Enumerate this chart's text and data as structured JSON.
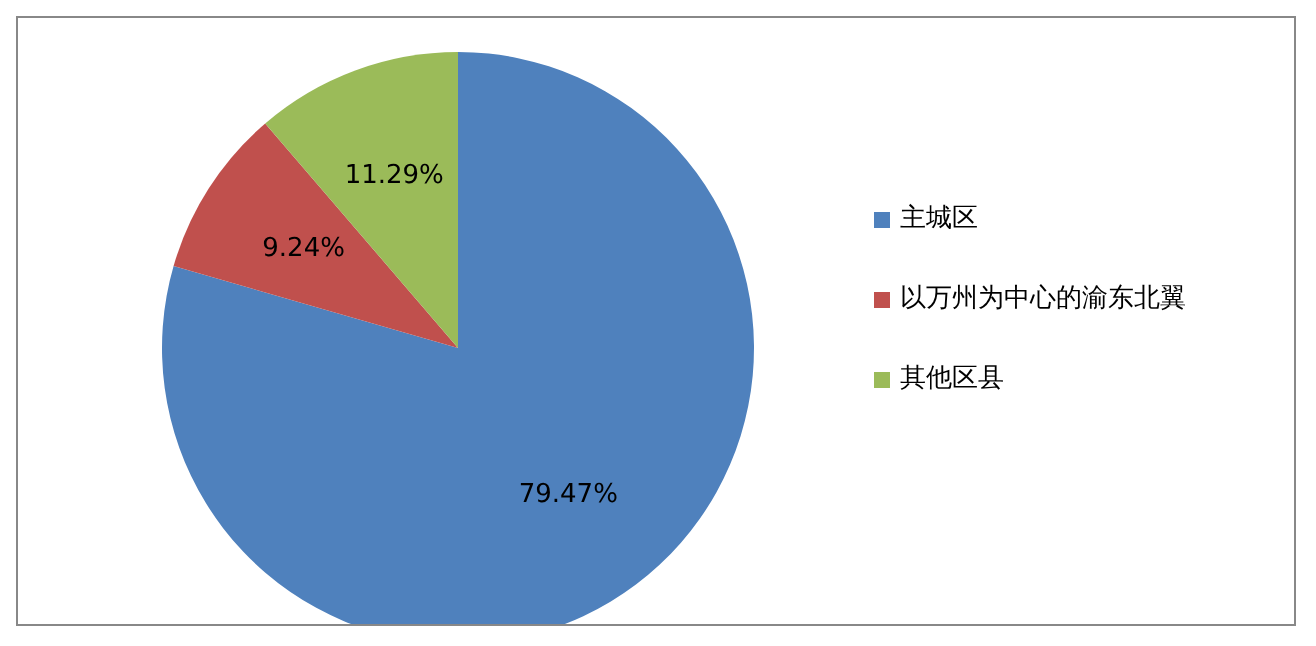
{
  "chart_data": {
    "type": "pie",
    "categories": [
      "主城区",
      "以万州为中心的渝东北翼",
      "其他区县"
    ],
    "values": [
      79.47,
      9.24,
      11.29
    ],
    "colors": [
      "#4f81bd",
      "#c0504d",
      "#9bbb59"
    ],
    "value_labels": [
      "79.47%",
      "9.24%",
      "11.29%"
    ],
    "legend": "right"
  }
}
